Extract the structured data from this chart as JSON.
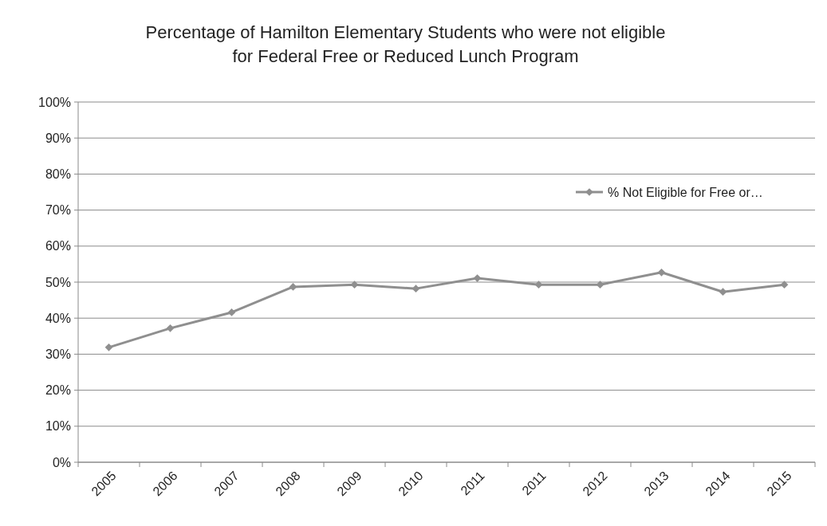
{
  "chart_data": {
    "type": "line",
    "title": "Percentage of Hamilton Elementary Students who were not eligible\nfor Federal Free or Reduced Lunch Program",
    "categories": [
      "2005",
      "2006",
      "2007",
      "2008",
      "2009",
      "2010",
      "2011",
      "2011",
      "2012",
      "2013",
      "2014",
      "2015"
    ],
    "series": [
      {
        "name": "% Not Eligible for Free or…",
        "color": "#8f8f8f",
        "values": [
          31.9,
          37.2,
          41.6,
          48.7,
          49.3,
          48.2,
          51.1,
          49.3,
          49.3,
          52.7,
          47.3,
          49.3
        ]
      }
    ],
    "ylim": [
      0,
      100
    ],
    "yticks": [
      {
        "value": 0,
        "label": "0%"
      },
      {
        "value": 10,
        "label": "10%"
      },
      {
        "value": 20,
        "label": "20%"
      },
      {
        "value": 30,
        "label": "30%"
      },
      {
        "value": 40,
        "label": "40%"
      },
      {
        "value": 50,
        "label": "50%"
      },
      {
        "value": 60,
        "label": "60%"
      },
      {
        "value": 70,
        "label": "70%"
      },
      {
        "value": 80,
        "label": "80%"
      },
      {
        "value": 90,
        "label": "90%"
      },
      {
        "value": 100,
        "label": "100%"
      }
    ],
    "grid": "y",
    "legend": "right",
    "marker": "diamond",
    "line_style": "solid"
  }
}
